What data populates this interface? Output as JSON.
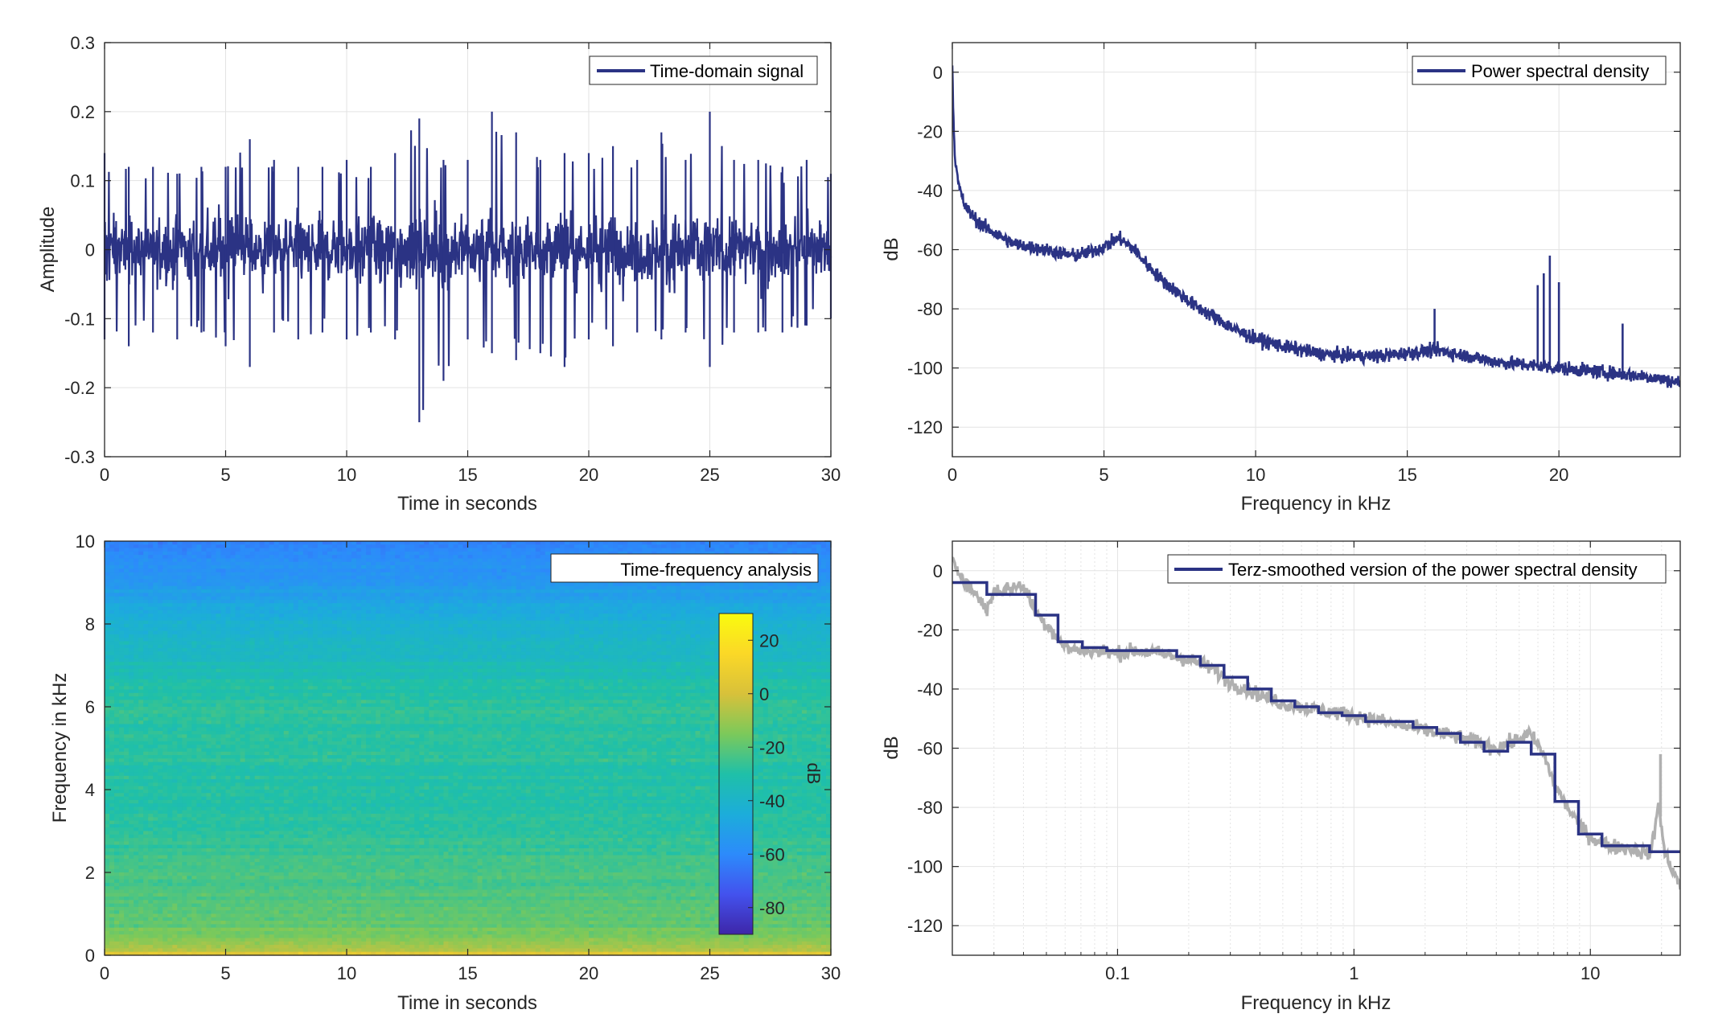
{
  "colors": {
    "line": "#2b3384",
    "raw": "#b0b0b0",
    "grid": "#e3e3e3",
    "axis": "#262626",
    "colormap": [
      "#3e26a8",
      "#4352ee",
      "#2c8bfb",
      "#1cadda",
      "#1fc0a8",
      "#7cc95a",
      "#d8c13a",
      "#fbd827",
      "#f9fb0e"
    ]
  },
  "chart_data": [
    {
      "id": "time-signal",
      "type": "line",
      "xlabel": "Time in seconds",
      "ylabel": "Amplitude",
      "xlim": [
        0,
        30
      ],
      "ylim": [
        -0.3,
        0.3
      ],
      "xticks": [
        0,
        5,
        10,
        15,
        20,
        25,
        30
      ],
      "yticks": [
        -0.3,
        -0.2,
        -0.1,
        0,
        0.1,
        0.2,
        0.3
      ],
      "xtick_labels": [
        "0",
        "5",
        "10",
        "15",
        "20",
        "25",
        "30"
      ],
      "ytick_labels": [
        "-0.3",
        "-0.2",
        "-0.1",
        "0",
        "0.1",
        "0.2",
        "0.3"
      ],
      "grid": true,
      "legend": "top-right",
      "series": [
        {
          "name": "Time-domain signal",
          "envelope_x": [
            0,
            1,
            2,
            3,
            4,
            5,
            6,
            7,
            8,
            9,
            10,
            11,
            12,
            13,
            14,
            15,
            16,
            17,
            18,
            19,
            20,
            21,
            22,
            23,
            24,
            25,
            26,
            27,
            28,
            29,
            30
          ],
          "envelope_max": [
            0.14,
            0.12,
            0.12,
            0.11,
            0.12,
            0.12,
            0.16,
            0.13,
            0.12,
            0.12,
            0.13,
            0.12,
            0.14,
            0.19,
            0.13,
            0.13,
            0.2,
            0.17,
            0.13,
            0.14,
            0.14,
            0.15,
            0.13,
            0.17,
            0.13,
            0.2,
            0.13,
            0.13,
            0.12,
            0.13,
            0.11
          ],
          "envelope_min": [
            -0.13,
            -0.14,
            -0.12,
            -0.13,
            -0.12,
            -0.14,
            -0.17,
            -0.12,
            -0.13,
            -0.12,
            -0.13,
            -0.12,
            -0.13,
            -0.25,
            -0.19,
            -0.13,
            -0.15,
            -0.16,
            -0.15,
            -0.17,
            -0.13,
            -0.14,
            -0.12,
            -0.13,
            -0.12,
            -0.17,
            -0.12,
            -0.12,
            -0.12,
            -0.11,
            -0.1
          ]
        }
      ]
    },
    {
      "id": "psd",
      "type": "line",
      "xlabel": "Frequency in kHz",
      "ylabel": "dB",
      "xlim": [
        0,
        24
      ],
      "ylim": [
        -130,
        10
      ],
      "xticks": [
        0,
        5,
        10,
        15,
        20
      ],
      "yticks": [
        -120,
        -100,
        -80,
        -60,
        -40,
        -20,
        0
      ],
      "xtick_labels": [
        "0",
        "5",
        "10",
        "15",
        "20"
      ],
      "ytick_labels": [
        "-120",
        "-100",
        "-80",
        "-60",
        "-40",
        "-20",
        "0"
      ],
      "grid": true,
      "legend": "top-right",
      "series": [
        {
          "name": "Power spectral density",
          "x": [
            0,
            0.05,
            0.1,
            0.2,
            0.4,
            0.7,
            1,
            1.5,
            2,
            2.5,
            3,
            3.5,
            4,
            4.5,
            5,
            5.5,
            6,
            6.5,
            7,
            7.5,
            8,
            8.5,
            9,
            9.5,
            10,
            11,
            12,
            13,
            14,
            15,
            16,
            17,
            18,
            19,
            20,
            21,
            22,
            23,
            24
          ],
          "y": [
            2,
            -20,
            -30,
            -38,
            -45,
            -49,
            -52,
            -55,
            -58,
            -59,
            -60,
            -61,
            -62,
            -61,
            -59,
            -56,
            -60,
            -66,
            -71,
            -75,
            -79,
            -82,
            -85,
            -88,
            -90,
            -93,
            -95,
            -96,
            -96,
            -95,
            -94,
            -96,
            -98,
            -99,
            -100,
            -101,
            -102,
            -103,
            -105
          ],
          "spikes": [
            {
              "x": 15.9,
              "y": -80
            },
            {
              "x": 19.3,
              "y": -72
            },
            {
              "x": 19.5,
              "y": -68
            },
            {
              "x": 19.7,
              "y": -62
            },
            {
              "x": 20.0,
              "y": -71
            },
            {
              "x": 22.1,
              "y": -85
            }
          ]
        }
      ]
    },
    {
      "id": "spectrogram",
      "type": "heatmap",
      "xlabel": "Time in seconds",
      "ylabel": "Frequency in kHz",
      "xlim": [
        0,
        30
      ],
      "ylim": [
        0,
        10
      ],
      "xticks": [
        0,
        5,
        10,
        15,
        20,
        25,
        30
      ],
      "yticks": [
        0,
        2,
        4,
        6,
        8,
        10
      ],
      "xtick_labels": [
        "0",
        "5",
        "10",
        "15",
        "20",
        "25",
        "30"
      ],
      "ytick_labels": [
        "0",
        "2",
        "4",
        "6",
        "8",
        "10"
      ],
      "legend": "top-right",
      "legend_label": "Time-frequency analysis",
      "colorbar": {
        "label": "dB",
        "range": [
          -90,
          30
        ],
        "ticks": [
          20,
          0,
          -20,
          -40,
          -60,
          -80
        ],
        "tick_labels": [
          "20",
          "0",
          "-20",
          "-40",
          "-60",
          "-80"
        ]
      },
      "level_profile": {
        "frequency_khz": [
          0,
          0.1,
          0.3,
          0.6,
          1,
          2,
          3,
          4,
          5,
          6,
          7,
          8,
          9,
          10
        ],
        "db": [
          10,
          -5,
          -12,
          -17,
          -20,
          -24,
          -28,
          -30,
          -29,
          -27,
          -35,
          -42,
          -55,
          -62
        ]
      }
    },
    {
      "id": "terz",
      "type": "line",
      "xlabel": "Frequency in kHz",
      "ylabel": "dB",
      "xscale": "log",
      "xlim": [
        0.02,
        24
      ],
      "ylim": [
        -130,
        10
      ],
      "xticks": [
        0.1,
        1,
        10
      ],
      "yticks": [
        -120,
        -100,
        -80,
        -60,
        -40,
        -20,
        0
      ],
      "xtick_labels": [
        "0.1",
        "1",
        "10"
      ],
      "ytick_labels": [
        "-120",
        "-100",
        "-80",
        "-60",
        "-40",
        "-20",
        "0"
      ],
      "grid": true,
      "legend": "top-right",
      "series": [
        {
          "name": "Terz-smoothed version of the power spectral density",
          "steps": [
            {
              "x0": 0.02,
              "x1": 0.028,
              "y": -4
            },
            {
              "x0": 0.028,
              "x1": 0.045,
              "y": -8
            },
            {
              "x0": 0.045,
              "x1": 0.056,
              "y": -15
            },
            {
              "x0": 0.056,
              "x1": 0.071,
              "y": -24
            },
            {
              "x0": 0.071,
              "x1": 0.09,
              "y": -26
            },
            {
              "x0": 0.09,
              "x1": 0.112,
              "y": -27
            },
            {
              "x0": 0.112,
              "x1": 0.141,
              "y": -27
            },
            {
              "x0": 0.141,
              "x1": 0.178,
              "y": -27
            },
            {
              "x0": 0.178,
              "x1": 0.224,
              "y": -29
            },
            {
              "x0": 0.224,
              "x1": 0.282,
              "y": -32
            },
            {
              "x0": 0.282,
              "x1": 0.355,
              "y": -36
            },
            {
              "x0": 0.355,
              "x1": 0.447,
              "y": -40
            },
            {
              "x0": 0.447,
              "x1": 0.562,
              "y": -44
            },
            {
              "x0": 0.562,
              "x1": 0.708,
              "y": -46
            },
            {
              "x0": 0.708,
              "x1": 0.891,
              "y": -48
            },
            {
              "x0": 0.891,
              "x1": 1.12,
              "y": -49
            },
            {
              "x0": 1.12,
              "x1": 1.41,
              "y": -51
            },
            {
              "x0": 1.41,
              "x1": 1.78,
              "y": -51
            },
            {
              "x0": 1.78,
              "x1": 2.24,
              "y": -53
            },
            {
              "x0": 2.24,
              "x1": 2.82,
              "y": -55
            },
            {
              "x0": 2.82,
              "x1": 3.55,
              "y": -58
            },
            {
              "x0": 3.55,
              "x1": 4.47,
              "y": -61
            },
            {
              "x0": 4.47,
              "x1": 5.62,
              "y": -58
            },
            {
              "x0": 5.62,
              "x1": 7.08,
              "y": -62
            },
            {
              "x0": 7.08,
              "x1": 8.91,
              "y": -78
            },
            {
              "x0": 8.91,
              "x1": 11.2,
              "y": -89
            },
            {
              "x0": 11.2,
              "x1": 14.1,
              "y": -93
            },
            {
              "x0": 14.1,
              "x1": 17.8,
              "y": -93
            },
            {
              "x0": 17.8,
              "x1": 24,
              "y": -95
            }
          ]
        },
        {
          "raw_x": [
            0.02,
            0.022,
            0.025,
            0.028,
            0.03,
            0.035,
            0.04,
            0.045,
            0.05,
            0.055,
            0.06,
            0.07,
            0.08,
            0.1,
            0.12,
            0.15,
            0.2,
            0.25,
            0.3,
            0.4,
            0.5,
            0.7,
            1,
            1.5,
            2,
            3,
            4,
            5,
            5.5,
            6,
            6.5,
            7,
            8,
            9,
            10,
            12,
            15,
            18,
            19.5,
            20.5,
            22,
            24
          ],
          "raw_y": [
            3,
            -2,
            -8,
            -13,
            -7,
            -6,
            -5,
            -14,
            -18,
            -22,
            -26,
            -27,
            -27,
            -28,
            -27,
            -28,
            -30,
            -33,
            -38,
            -42,
            -45,
            -47,
            -49,
            -52,
            -54,
            -57,
            -60,
            -57,
            -55,
            -59,
            -64,
            -72,
            -80,
            -86,
            -90,
            -93,
            -94,
            -96,
            -78,
            -95,
            -100,
            -107
          ],
          "raw_spikes": [
            {
              "x": 19.8,
              "y": -62
            }
          ]
        }
      ]
    }
  ]
}
